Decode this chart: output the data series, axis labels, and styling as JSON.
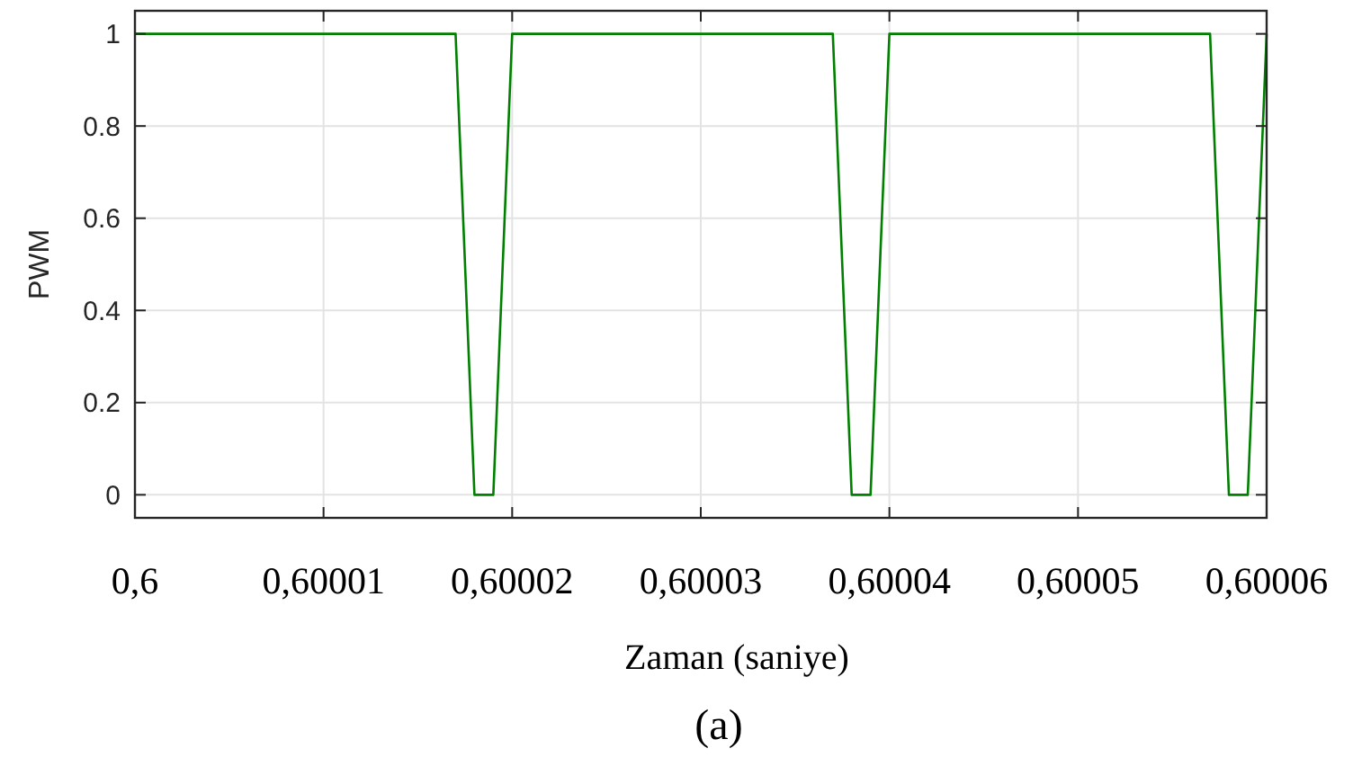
{
  "chart_data": {
    "type": "line",
    "xlabel": "Zaman (saniye)",
    "ylabel": "PWM",
    "annotations": [
      "(a)"
    ],
    "x": [
      0.6,
      0.600017,
      0.600018,
      0.600019,
      0.60002,
      0.600037,
      0.600038,
      0.600039,
      0.60004,
      0.600057,
      0.600058,
      0.600059,
      0.60006
    ],
    "series": [
      {
        "color": "#008000",
        "values": [
          1,
          1,
          0,
          0,
          1,
          1,
          0,
          0,
          1,
          1,
          0,
          0,
          1
        ]
      }
    ],
    "xlim": [
      0.6,
      0.60006
    ],
    "xticks": [
      {
        "value": 0.6,
        "label": "0,6"
      },
      {
        "value": 0.60001,
        "label": "0,60001"
      },
      {
        "value": 0.60002,
        "label": "0,60002"
      },
      {
        "value": 0.60003,
        "label": "0,60003"
      },
      {
        "value": 0.60004,
        "label": "0,60004"
      },
      {
        "value": 0.60005,
        "label": "0,60005"
      },
      {
        "value": 0.60006,
        "label": "0,60006"
      }
    ],
    "ylim": [
      -0.05,
      1.05
    ],
    "yticks": [
      0,
      0.2,
      0.4,
      0.6,
      0.8,
      1
    ],
    "grid": true,
    "marker": "none",
    "line_style": "solid"
  }
}
